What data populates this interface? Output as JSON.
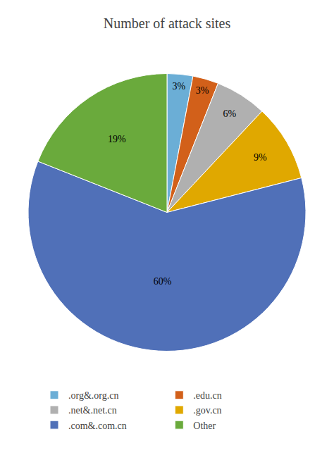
{
  "chart_data": {
    "type": "pie",
    "title": "Number of attack sites",
    "categories": [
      ".org&.org.cn",
      ".edu.cn",
      ".net&.net.cn",
      ".gov.cn",
      ".com&.com.cn",
      "Other"
    ],
    "values": [
      3,
      3,
      6,
      9,
      60,
      19
    ],
    "value_labels": [
      "3%",
      "3%",
      "6%",
      "9%",
      "60%",
      "19%"
    ],
    "colors": [
      "#6baed6",
      "#d2601a",
      "#b0b0b0",
      "#e0a800",
      "#5070b8",
      "#6aaa3c"
    ],
    "data_labels": true,
    "legend": "bottom"
  }
}
